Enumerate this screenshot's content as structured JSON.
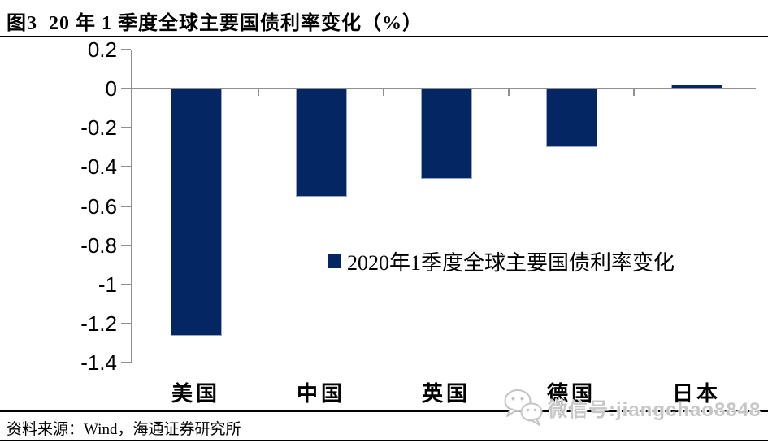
{
  "header": {
    "figure_title": "图3  20 年 1 季度全球主要国债利率变化（%）"
  },
  "chart_data": {
    "type": "bar",
    "title": "20 年 1 季度全球主要国债利率变化（%）",
    "categories": [
      "美国",
      "中国",
      "英国",
      "德国",
      "日本"
    ],
    "values": [
      -1.26,
      -0.55,
      -0.46,
      -0.3,
      0.02
    ],
    "series_name": "2020年1季度全球主要国债利率变化",
    "unit": "%",
    "ylim": [
      -1.4,
      0.2
    ],
    "yticks": [
      0.2,
      0,
      -0.2,
      -0.4,
      -0.6,
      -0.8,
      -1,
      -1.2,
      -1.4
    ],
    "ytick_labels": [
      "0.2",
      "0",
      "-0.2",
      "-0.4",
      "-0.6",
      "-0.8",
      "-1",
      "-1.2",
      "-1.4"
    ],
    "grid": false,
    "legend_position": "center-right-inside",
    "bar_color": "#042663",
    "axis_color": "#8f8f8f"
  },
  "legend": {
    "label": "2020年1季度全球主要国债利率变化"
  },
  "footer": {
    "source": "资料来源：Wind，海通证券研究所"
  },
  "watermark": {
    "icon": "wechat-icon",
    "text": "微信号:jiangchao8848",
    "color": "#c7c7c7"
  }
}
